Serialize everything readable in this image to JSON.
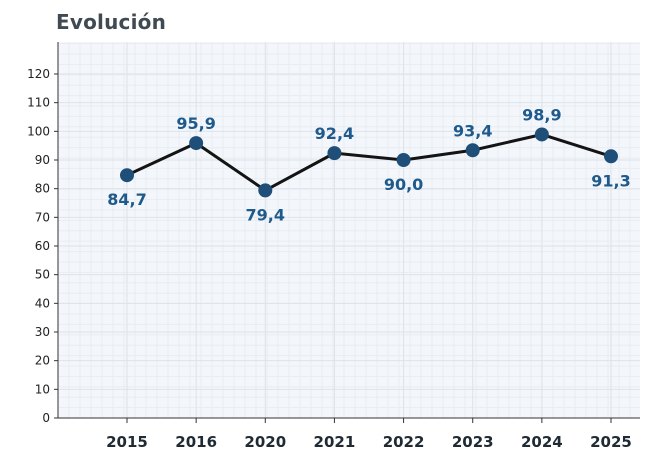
{
  "chart_data": {
    "type": "line",
    "title": "Evolución",
    "xlabel": "",
    "ylabel": "",
    "categories": [
      "2015",
      "2016",
      "2020",
      "2021",
      "2022",
      "2023",
      "2024",
      "2025"
    ],
    "series": [
      {
        "values": [
          84.7,
          95.9,
          79.4,
          92.4,
          90.0,
          93.4,
          98.9,
          91.3
        ],
        "labels": [
          "84,7",
          "95,9",
          "79,4",
          "92,4",
          "90,0",
          "93,4",
          "98,9",
          "91,3"
        ]
      }
    ],
    "ylim": [
      0,
      120
    ],
    "yticks": [
      0,
      10,
      20,
      30,
      40,
      50,
      60,
      70,
      80,
      90,
      100,
      110,
      120
    ],
    "grid": true,
    "colors": {
      "line": "#141414",
      "marker": "#1f4e79",
      "label": "#1f5a8c",
      "plot_bg": "#f3f6fa",
      "grid": "#dde3ea"
    }
  }
}
